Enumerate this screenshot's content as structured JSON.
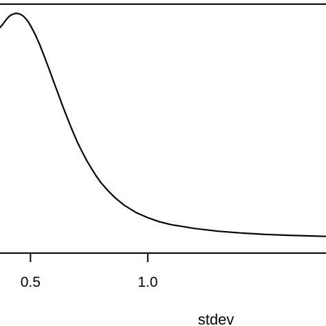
{
  "chart_data": {
    "type": "line",
    "title": "",
    "xlabel": "stdev",
    "ylabel": "",
    "xlim": [
      0.37,
      1.76
    ],
    "ylim": [
      0,
      1
    ],
    "x_ticks": [
      {
        "value": 0.5,
        "label": "0.5"
      },
      {
        "value": 1.0,
        "label": "1.0"
      }
    ],
    "grid": false,
    "legend": "none",
    "colors": {
      "line": "#000000",
      "axis": "#000000",
      "background": "#ffffff"
    },
    "series": [
      {
        "x": [
          0.37,
          0.38,
          0.39,
          0.4,
          0.41,
          0.42,
          0.43,
          0.44,
          0.45,
          0.46,
          0.47,
          0.48,
          0.49,
          0.5,
          0.52,
          0.54,
          0.56,
          0.58,
          0.6,
          0.62,
          0.64,
          0.66,
          0.68,
          0.7,
          0.72,
          0.74,
          0.76,
          0.78,
          0.8,
          0.83,
          0.86,
          0.9,
          0.95,
          1.0,
          1.05,
          1.1,
          1.2,
          1.3,
          1.4,
          1.5,
          1.6,
          1.7,
          1.76
        ],
        "y": [
          0.935,
          0.948,
          0.962,
          0.975,
          0.986,
          0.993,
          0.997,
          0.999,
          0.997,
          0.993,
          0.986,
          0.975,
          0.962,
          0.945,
          0.905,
          0.858,
          0.805,
          0.75,
          0.693,
          0.636,
          0.58,
          0.527,
          0.476,
          0.428,
          0.385,
          0.346,
          0.311,
          0.278,
          0.249,
          0.213,
          0.182,
          0.148,
          0.116,
          0.093,
          0.075,
          0.062,
          0.045,
          0.033,
          0.025,
          0.019,
          0.015,
          0.012,
          0.01
        ]
      }
    ]
  }
}
